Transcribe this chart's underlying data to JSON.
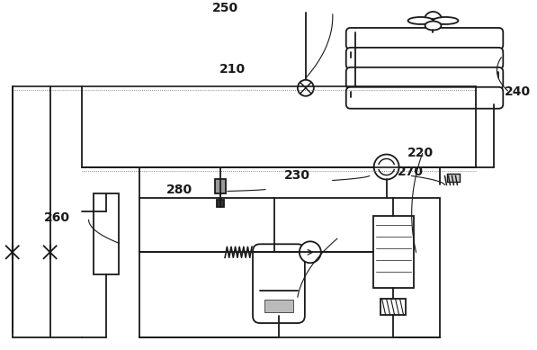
{
  "bg_color": "#ffffff",
  "lc": "#1a1a1a",
  "lw": 1.3,
  "fig_w": 5.97,
  "fig_h": 3.89,
  "dpi": 100,
  "labels": {
    "210": [
      0.408,
      0.195,
      "210"
    ],
    "220": [
      0.76,
      0.435,
      "220"
    ],
    "230": [
      0.53,
      0.5,
      "230"
    ],
    "240": [
      0.94,
      0.26,
      "240"
    ],
    "250": [
      0.395,
      0.02,
      "250"
    ],
    "260": [
      0.08,
      0.62,
      "260"
    ],
    "270": [
      0.74,
      0.49,
      "270"
    ],
    "280": [
      0.31,
      0.54,
      "280"
    ]
  },
  "label_fs": 10
}
